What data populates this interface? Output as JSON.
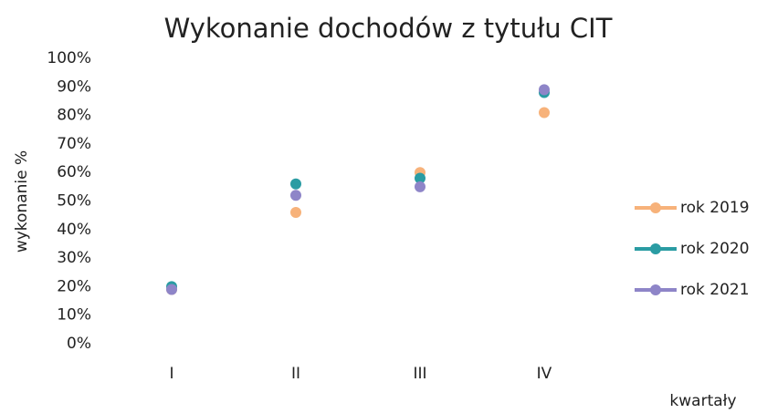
{
  "chart_data": {
    "type": "line",
    "title": "Wykonanie dochodów z tytułu CIT",
    "y_label": "wykonanie %",
    "x_label": "kwartały",
    "categories": [
      "I",
      "II",
      "III",
      "IV"
    ],
    "series": [
      {
        "name": "rok 2019",
        "color": "#f7b27a",
        "values": [
          19,
          46,
          60,
          81
        ]
      },
      {
        "name": "rok 2020",
        "color": "#2a9ca3",
        "values": [
          20,
          56,
          58,
          88
        ]
      },
      {
        "name": "rok 2021",
        "color": "#8e85c8",
        "values": [
          19,
          52,
          55,
          89
        ]
      }
    ],
    "ylim": [
      0,
      100
    ],
    "yticks": [
      {
        "value": 0,
        "label": "0%"
      },
      {
        "value": 10,
        "label": "10%"
      },
      {
        "value": 20,
        "label": "20%"
      },
      {
        "value": 30,
        "label": "30%"
      },
      {
        "value": 40,
        "label": "40%"
      },
      {
        "value": 50,
        "label": "50%"
      },
      {
        "value": 60,
        "label": "60%"
      },
      {
        "value": 70,
        "label": "70%"
      },
      {
        "value": 80,
        "label": "80%"
      },
      {
        "value": 90,
        "label": "90%"
      },
      {
        "value": 100,
        "label": "100%"
      }
    ],
    "grid": false,
    "legend": "right"
  }
}
